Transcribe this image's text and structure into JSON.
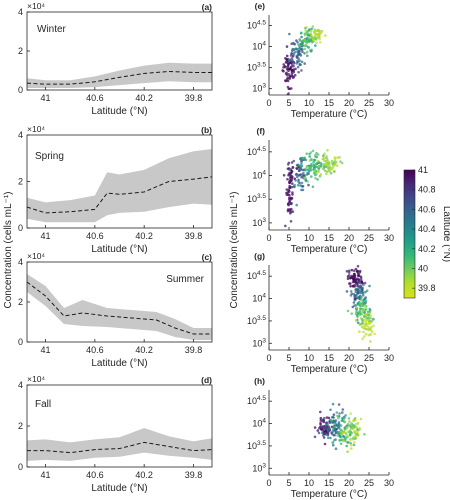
{
  "figure": {
    "ylabel_left": "Concentration (cells mL⁻¹)",
    "ylabel_right": "Concentration (cells mL⁻¹)",
    "colors": {
      "band": "#c8c8c8",
      "mean_line": "#1a1a1a",
      "axes": "#262626",
      "colormap": [
        "#440154",
        "#482878",
        "#3e4a89",
        "#31688e",
        "#26828e",
        "#1f9e89",
        "#35b779",
        "#6ece58",
        "#b5de2b",
        "#d8e219"
      ]
    }
  },
  "chart_data": [
    {
      "id": "a",
      "panel_label": "(a)",
      "season": "Winter",
      "type": "line",
      "xlabel": "Latitude (°N)",
      "x_reversed": true,
      "xlim": [
        41.15,
        39.65
      ],
      "ylim": [
        0,
        40000
      ],
      "xticks": [
        41,
        40.6,
        40.2,
        39.8
      ],
      "xtick_labels": [
        "41",
        "40.6",
        "40.2",
        "39.8"
      ],
      "yticks": [
        0,
        20000,
        40000
      ],
      "ytick_labels": [
        "0",
        "2",
        "4"
      ],
      "multiplier": "×10⁴",
      "series": [
        {
          "x": [
            41.15,
            41.0,
            40.8,
            40.6,
            40.4,
            40.2,
            40.0,
            39.8,
            39.65
          ],
          "mean": [
            3500,
            3000,
            3000,
            4200,
            6500,
            8500,
            9500,
            9000,
            9000
          ],
          "lower": [
            1000,
            1000,
            1000,
            1500,
            2500,
            3500,
            4500,
            4000,
            4000
          ],
          "upper": [
            6000,
            5000,
            5000,
            7000,
            10000,
            12500,
            14000,
            13500,
            13500
          ]
        }
      ]
    },
    {
      "id": "b",
      "panel_label": "(b)",
      "season": "Spring",
      "type": "line",
      "xlabel": "Latitude (°N)",
      "x_reversed": true,
      "xlim": [
        41.15,
        39.65
      ],
      "ylim": [
        0,
        40000
      ],
      "xticks": [
        41,
        40.6,
        40.2,
        39.8
      ],
      "xtick_labels": [
        "41",
        "40.6",
        "40.2",
        "39.8"
      ],
      "yticks": [
        0,
        20000,
        40000
      ],
      "ytick_labels": [
        "0",
        "2",
        "4"
      ],
      "multiplier": "×10⁴",
      "series": [
        {
          "x": [
            41.15,
            41.0,
            40.8,
            40.6,
            40.5,
            40.4,
            40.2,
            40.0,
            39.8,
            39.65
          ],
          "mean": [
            9000,
            6500,
            7000,
            8000,
            15000,
            14500,
            15500,
            20000,
            21000,
            22000
          ],
          "lower": [
            4000,
            2500,
            2500,
            2500,
            5500,
            6500,
            7000,
            9000,
            10500,
            10000
          ],
          "upper": [
            13000,
            11000,
            12000,
            14000,
            24000,
            23000,
            25000,
            30000,
            33000,
            34000
          ]
        }
      ]
    },
    {
      "id": "c",
      "panel_label": "(c)",
      "season": "Summer",
      "type": "line",
      "xlabel": "Latitude (°N)",
      "x_reversed": true,
      "xlim": [
        41.15,
        39.65
      ],
      "ylim": [
        0,
        40000
      ],
      "xticks": [
        41,
        40.6,
        40.2,
        39.8
      ],
      "xtick_labels": [
        "41",
        "40.6",
        "40.2",
        "39.8"
      ],
      "yticks": [
        0,
        20000,
        40000
      ],
      "ytick_labels": [
        "0",
        "2",
        "4"
      ],
      "multiplier": "×10⁴",
      "series": [
        {
          "x": [
            41.15,
            41.0,
            40.85,
            40.7,
            40.5,
            40.3,
            40.1,
            39.95,
            39.8,
            39.65
          ],
          "mean": [
            30000,
            23000,
            13000,
            14500,
            13000,
            12000,
            11000,
            7000,
            4000,
            4000
          ],
          "lower": [
            25000,
            18000,
            9000,
            8000,
            7500,
            6500,
            5500,
            2500,
            1000,
            1000
          ],
          "upper": [
            34000,
            28000,
            17000,
            21000,
            17000,
            16000,
            15000,
            11500,
            7000,
            7000
          ]
        }
      ]
    },
    {
      "id": "d",
      "panel_label": "(d)",
      "season": "Fall",
      "type": "line",
      "xlabel": "Latitude (°N)",
      "x_reversed": true,
      "xlim": [
        41.15,
        39.65
      ],
      "ylim": [
        0,
        40000
      ],
      "xticks": [
        41,
        40.6,
        40.2,
        39.8
      ],
      "xtick_labels": [
        "41",
        "40.6",
        "40.2",
        "39.8"
      ],
      "yticks": [
        0,
        20000,
        40000
      ],
      "ytick_labels": [
        "0",
        "2",
        "4"
      ],
      "multiplier": "×10⁴",
      "series": [
        {
          "x": [
            41.15,
            41.0,
            40.8,
            40.6,
            40.4,
            40.2,
            40.0,
            39.8,
            39.65
          ],
          "mean": [
            8000,
            8000,
            7000,
            8500,
            9000,
            12000,
            10000,
            8000,
            8500
          ],
          "lower": [
            3000,
            3500,
            3000,
            4500,
            5000,
            7000,
            5500,
            4500,
            3500
          ],
          "upper": [
            13000,
            13500,
            12000,
            13500,
            14500,
            19000,
            15000,
            12500,
            14000
          ]
        }
      ]
    },
    {
      "id": "e",
      "panel_label": "(e)",
      "type": "scatter",
      "xlabel": "Temperature (°C)",
      "xlim": [
        0,
        30
      ],
      "xticks": [
        0,
        5,
        10,
        15,
        20,
        25,
        30
      ],
      "xtick_labels": [
        "0",
        "5",
        "10",
        "15",
        "20",
        "25",
        "30"
      ],
      "y_scale": "log",
      "ylim_log10": [
        2.85,
        4.75
      ],
      "yticks_log10": [
        3,
        3.5,
        4,
        4.5
      ],
      "ytick_labels": [
        {
          "base": "10",
          "exp": "3"
        },
        {
          "base": "10",
          "exp": "3.5"
        },
        {
          "base": "10",
          "exp": "4"
        },
        {
          "base": "10",
          "exp": "4.5"
        }
      ],
      "clusters": [
        {
          "temp": 5.0,
          "temp_sd": 0.8,
          "log_conc": 3.45,
          "log_sd": 0.22,
          "lat": 40.95,
          "lat_sd": 0.06,
          "n": 70
        },
        {
          "temp": 7.2,
          "temp_sd": 1.0,
          "log_conc": 3.85,
          "log_sd": 0.2,
          "lat": 40.6,
          "lat_sd": 0.12,
          "n": 60
        },
        {
          "temp": 10.0,
          "temp_sd": 1.1,
          "log_conc": 4.15,
          "log_sd": 0.14,
          "lat": 40.1,
          "lat_sd": 0.15,
          "n": 80
        },
        {
          "temp": 11.8,
          "temp_sd": 0.7,
          "log_conc": 4.3,
          "log_sd": 0.1,
          "lat": 39.85,
          "lat_sd": 0.1,
          "n": 40
        }
      ]
    },
    {
      "id": "f",
      "panel_label": "(f)",
      "type": "scatter",
      "xlabel": "Temperature (°C)",
      "xlim": [
        0,
        30
      ],
      "xticks": [
        0,
        5,
        10,
        15,
        20,
        25,
        30
      ],
      "xtick_labels": [
        "0",
        "5",
        "10",
        "15",
        "20",
        "25",
        "30"
      ],
      "y_scale": "log",
      "ylim_log10": [
        2.85,
        4.75
      ],
      "yticks_log10": [
        3,
        3.5,
        4,
        4.5
      ],
      "ytick_labels": [
        {
          "base": "10",
          "exp": "3"
        },
        {
          "base": "10",
          "exp": "3.5"
        },
        {
          "base": "10",
          "exp": "4"
        },
        {
          "base": "10",
          "exp": "4.5"
        }
      ],
      "clusters": [
        {
          "temp": 5.2,
          "temp_sd": 0.5,
          "log_conc": 3.7,
          "log_sd": 0.3,
          "lat": 40.95,
          "lat_sd": 0.06,
          "n": 70
        },
        {
          "temp": 7.5,
          "temp_sd": 1.0,
          "log_conc": 4.1,
          "log_sd": 0.18,
          "lat": 40.6,
          "lat_sd": 0.15,
          "n": 60
        },
        {
          "temp": 11.0,
          "temp_sd": 1.6,
          "log_conc": 4.2,
          "log_sd": 0.15,
          "lat": 40.15,
          "lat_sd": 0.15,
          "n": 90
        },
        {
          "temp": 15.0,
          "temp_sd": 1.4,
          "log_conc": 4.25,
          "log_sd": 0.12,
          "lat": 39.85,
          "lat_sd": 0.1,
          "n": 60
        }
      ]
    },
    {
      "id": "g",
      "panel_label": "(g)",
      "type": "scatter",
      "xlabel": "Temperature (°C)",
      "xlim": [
        0,
        30
      ],
      "xticks": [
        0,
        5,
        10,
        15,
        20,
        25,
        30
      ],
      "xtick_labels": [
        "0",
        "5",
        "10",
        "15",
        "20",
        "25",
        "30"
      ],
      "y_scale": "log",
      "ylim_log10": [
        2.85,
        4.75
      ],
      "yticks_log10": [
        3,
        3.5,
        4,
        4.5
      ],
      "ytick_labels": [
        {
          "base": "10",
          "exp": "3"
        },
        {
          "base": "10",
          "exp": "3.5"
        },
        {
          "base": "10",
          "exp": "4"
        },
        {
          "base": "10",
          "exp": "4.5"
        }
      ],
      "clusters": [
        {
          "temp": 21.5,
          "temp_sd": 0.9,
          "log_conc": 4.45,
          "log_sd": 0.12,
          "lat": 40.95,
          "lat_sd": 0.08,
          "n": 70
        },
        {
          "temp": 22.5,
          "temp_sd": 1.0,
          "log_conc": 4.1,
          "log_sd": 0.15,
          "lat": 40.55,
          "lat_sd": 0.12,
          "n": 70
        },
        {
          "temp": 23.5,
          "temp_sd": 1.0,
          "log_conc": 3.7,
          "log_sd": 0.15,
          "lat": 40.1,
          "lat_sd": 0.12,
          "n": 70
        },
        {
          "temp": 24.5,
          "temp_sd": 0.8,
          "log_conc": 3.4,
          "log_sd": 0.15,
          "lat": 39.85,
          "lat_sd": 0.1,
          "n": 50
        }
      ]
    },
    {
      "id": "h",
      "panel_label": "(h)",
      "type": "scatter",
      "xlabel": "Temperature (°C)",
      "xlim": [
        0,
        30
      ],
      "xticks": [
        0,
        5,
        10,
        15,
        20,
        25,
        30
      ],
      "xtick_labels": [
        "0",
        "5",
        "10",
        "15",
        "20",
        "25",
        "30"
      ],
      "y_scale": "log",
      "ylim_log10": [
        2.85,
        4.75
      ],
      "yticks_log10": [
        3,
        3.5,
        4,
        4.5
      ],
      "ytick_labels": [
        {
          "base": "10",
          "exp": "3"
        },
        {
          "base": "10",
          "exp": "3.5"
        },
        {
          "base": "10",
          "exp": "4"
        },
        {
          "base": "10",
          "exp": "4.5"
        }
      ],
      "clusters": [
        {
          "temp": 14.0,
          "temp_sd": 1.0,
          "log_conc": 3.9,
          "log_sd": 0.15,
          "lat": 40.9,
          "lat_sd": 0.1,
          "n": 60
        },
        {
          "temp": 16.5,
          "temp_sd": 1.2,
          "log_conc": 3.9,
          "log_sd": 0.18,
          "lat": 40.5,
          "lat_sd": 0.15,
          "n": 70
        },
        {
          "temp": 19.0,
          "temp_sd": 1.2,
          "log_conc": 3.85,
          "log_sd": 0.18,
          "lat": 40.1,
          "lat_sd": 0.15,
          "n": 70
        },
        {
          "temp": 21.0,
          "temp_sd": 1.0,
          "log_conc": 3.8,
          "log_sd": 0.15,
          "lat": 39.85,
          "lat_sd": 0.1,
          "n": 50
        }
      ]
    },
    {
      "id": "colorbar",
      "type": "heatmap",
      "label": "Latitude (°N)",
      "range": [
        39.7,
        41.0
      ],
      "ticks": [
        41,
        40.8,
        40.6,
        40.4,
        40.2,
        40,
        39.8
      ],
      "tick_labels": [
        "41",
        "40.8",
        "40.6",
        "40.4",
        "40.2",
        "40",
        "39.8"
      ]
    }
  ]
}
